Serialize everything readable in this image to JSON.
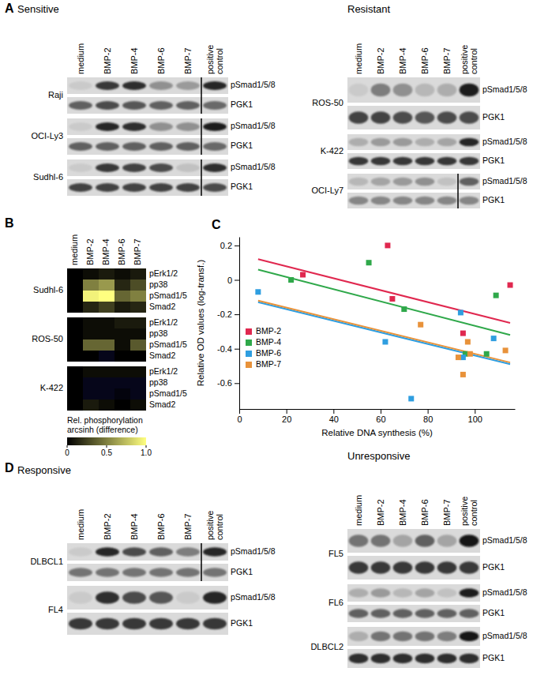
{
  "panels": [
    {
      "label": "A",
      "groups": [
        {
          "title": "Sensitive",
          "lanes": [
            "medium",
            "BMP-2",
            "BMP-4",
            "BMP-6",
            "BMP-7",
            "positive control"
          ],
          "blots": [
            {
              "cell": "Raji",
              "divider": true,
              "rows": [
                {
                  "label": "pSmad1/5/8",
                  "values": [
                    0.05,
                    0.8,
                    0.85,
                    0.35,
                    0.3,
                    0.9
                  ]
                },
                {
                  "label": "PGK1",
                  "values": [
                    0.6,
                    0.7,
                    0.65,
                    0.6,
                    0.6,
                    0.55
                  ]
                }
              ]
            },
            {
              "cell": "OCI-Ly3",
              "divider": true,
              "rows": [
                {
                  "label": "pSmad1/5/8",
                  "values": [
                    0.05,
                    0.9,
                    0.85,
                    0.35,
                    0.35,
                    0.95
                  ]
                },
                {
                  "label": "PGK1",
                  "values": [
                    0.6,
                    0.6,
                    0.6,
                    0.6,
                    0.6,
                    0.55
                  ]
                }
              ]
            },
            {
              "cell": "Sudhl-6",
              "divider": true,
              "rows": [
                {
                  "label": "pSmad1/5/8",
                  "values": [
                    0.05,
                    0.8,
                    0.75,
                    0.7,
                    0.1,
                    0.85
                  ]
                },
                {
                  "label": "PGK1",
                  "values": [
                    0.75,
                    0.75,
                    0.75,
                    0.75,
                    0.75,
                    0.7
                  ]
                }
              ]
            }
          ]
        },
        {
          "title": "Resistant",
          "lanes": [
            "medium",
            "BMP-2",
            "BMP-4",
            "BMP-6",
            "BMP-7",
            "positive control"
          ],
          "blots": [
            {
              "cell": "ROS-50",
              "divider": false,
              "rows": [
                {
                  "label": "pSmad1/5/8",
                  "values": [
                    0.05,
                    0.45,
                    0.35,
                    0.15,
                    0.2,
                    0.95
                  ]
                },
                {
                  "label": "PGK1",
                  "values": [
                    0.75,
                    0.75,
                    0.7,
                    0.65,
                    0.7,
                    0.7
                  ]
                }
              ]
            },
            {
              "cell": "K-422",
              "divider": false,
              "rows": [
                {
                  "label": "pSmad1/5/8",
                  "values": [
                    0.2,
                    0.3,
                    0.3,
                    0.2,
                    0.25,
                    0.9
                  ]
                },
                {
                  "label": "PGK1",
                  "values": [
                    0.8,
                    0.8,
                    0.8,
                    0.8,
                    0.8,
                    0.8
                  ]
                }
              ]
            },
            {
              "cell": "OCI-Ly7",
              "divider": true,
              "rows": [
                {
                  "label": "pSmad1/5/8",
                  "values": [
                    0.15,
                    0.25,
                    0.3,
                    0.35,
                    0.1,
                    0.6
                  ]
                },
                {
                  "label": "PGK1",
                  "values": [
                    0.4,
                    0.4,
                    0.4,
                    0.4,
                    0.4,
                    0.4
                  ]
                }
              ]
            }
          ]
        }
      ]
    },
    {
      "label": "B",
      "columns": [
        "medium",
        "BMP-2",
        "BMP-4",
        "BMP-6",
        "BMP-7"
      ],
      "rows": [
        "pErk1/2",
        "pp38",
        "pSmad1/5",
        "Smad2"
      ],
      "maps": [
        {
          "cell": "Sudhl-6",
          "values": [
            [
              0,
              0.05,
              0.1,
              0.05,
              0.1
            ],
            [
              0,
              0.5,
              0.6,
              0.15,
              0.3
            ],
            [
              0,
              0.95,
              1.0,
              0.4,
              0.5
            ],
            [
              0,
              0.15,
              0.25,
              0.1,
              0.15
            ]
          ]
        },
        {
          "cell": "ROS-50",
          "values": [
            [
              0,
              0.05,
              0.05,
              0.1,
              0.1
            ],
            [
              0,
              0.05,
              0.05,
              0.05,
              0.05
            ],
            [
              0,
              0.4,
              0.4,
              0.05,
              0.35
            ],
            [
              0,
              0,
              -0.1,
              0,
              0
            ]
          ]
        },
        {
          "cell": "K-422",
          "values": [
            [
              0,
              0.05,
              0.05,
              0.05,
              0.05
            ],
            [
              0,
              -0.1,
              -0.1,
              -0.1,
              -0.1
            ],
            [
              0,
              -0.1,
              -0.1,
              -0.05,
              -0.1
            ],
            [
              0,
              0.1,
              0.05,
              0,
              0.05
            ]
          ]
        }
      ],
      "colorbar": {
        "title": [
          "Rel. phosphorylation",
          "arcsinh (difference)"
        ],
        "range": [
          0,
          1
        ],
        "ticks": [
          0,
          0.5,
          {
            "value": 1,
            "label": "1.0"
          }
        ]
      }
    },
    {
      "label": "D",
      "groups": [
        {
          "title": "Responsive",
          "lanes": [
            "medium",
            "BMP-2",
            "BMP-4",
            "BMP-6",
            "BMP-7",
            "positive control"
          ],
          "blots": [
            {
              "cell": "DLBCL1",
              "divider": true,
              "rows": [
                {
                  "label": "pSmad1/5/8",
                  "values": [
                    0.05,
                    0.9,
                    0.7,
                    0.6,
                    0.45,
                    0.9
                  ]
                },
                {
                  "label": "PGK1",
                  "values": [
                    0.5,
                    0.5,
                    0.5,
                    0.5,
                    0.5,
                    0.5
                  ]
                }
              ]
            },
            {
              "cell": "FL4",
              "divider": false,
              "rows": [
                {
                  "label": "pSmad1/5/8",
                  "values": [
                    0.05,
                    0.85,
                    0.7,
                    0.65,
                    0.05,
                    0.9
                  ]
                },
                {
                  "label": "PGK1",
                  "values": [
                    0.8,
                    0.8,
                    0.8,
                    0.8,
                    0.8,
                    0.8
                  ]
                }
              ]
            }
          ]
        },
        {
          "title": "Unresponsive",
          "lanes": [
            "medium",
            "BMP-2",
            "BMP-4",
            "BMP-6",
            "BMP-7",
            "positive control"
          ],
          "blots": [
            {
              "cell": "FL5",
              "divider": false,
              "rows": [
                {
                  "label": "pSmad1/5/8",
                  "values": [
                    0.5,
                    0.5,
                    0.25,
                    0.6,
                    0.25,
                    1.0
                  ]
                },
                {
                  "label": "PGK1",
                  "values": [
                    0.8,
                    0.8,
                    0.8,
                    0.8,
                    0.8,
                    0.8
                  ]
                }
              ]
            },
            {
              "cell": "FL6",
              "divider": false,
              "rows": [
                {
                  "label": "pSmad1/5/8",
                  "values": [
                    0.2,
                    0.3,
                    0.15,
                    0.25,
                    0.1,
                    0.95
                  ]
                },
                {
                  "label": "PGK1",
                  "values": [
                    0.6,
                    0.6,
                    0.6,
                    0.6,
                    0.6,
                    0.6
                  ]
                }
              ]
            },
            {
              "cell": "DLBCL2",
              "divider": false,
              "rows": [
                {
                  "label": "pSmad1/5/8",
                  "values": [
                    0.2,
                    0.5,
                    0.5,
                    0.5,
                    0.45,
                    1.0
                  ]
                },
                {
                  "label": "PGK1",
                  "values": [
                    0.85,
                    0.85,
                    0.85,
                    0.85,
                    0.85,
                    0.85
                  ]
                }
              ]
            }
          ]
        }
      ]
    }
  ],
  "chart_data": {
    "panel_label": "C",
    "type": "scatter",
    "x_label": "Relative DNA synthesis (%)",
    "y_label": "Relative OD values (log-transf.)",
    "xlim": [
      0,
      117
    ],
    "ylim": [
      -0.75,
      0.25
    ],
    "xticks": [
      0,
      20,
      40,
      60,
      80,
      100
    ],
    "yticks": [
      -0.6,
      -0.4,
      -0.2,
      0,
      0.2
    ],
    "marker": "square",
    "legend": "lower left",
    "series": [
      {
        "name": "BMP-2",
        "color": "#e0284f",
        "x": [
          27,
          63,
          65,
          95,
          115
        ],
        "values": [
          0.03,
          0.2,
          -0.11,
          -0.31,
          -0.03
        ],
        "trend": {
          "x": [
            8,
            115
          ],
          "values": [
            0.12,
            -0.25
          ]
        }
      },
      {
        "name": "BMP-4",
        "color": "#2fa84a",
        "x": [
          22,
          55,
          70,
          96,
          105,
          109
        ],
        "values": [
          0,
          0.1,
          -0.17,
          -0.43,
          -0.43,
          -0.09
        ],
        "trend": {
          "x": [
            8,
            115
          ],
          "values": [
            0.06,
            -0.32
          ]
        }
      },
      {
        "name": "BMP-6",
        "color": "#2f9ee0",
        "x": [
          8,
          62,
          73,
          94,
          95,
          108
        ],
        "values": [
          -0.07,
          -0.36,
          -0.69,
          -0.19,
          -0.45,
          -0.34
        ],
        "trend": {
          "x": [
            8,
            115
          ],
          "values": [
            -0.13,
            -0.49
          ]
        }
      },
      {
        "name": "BMP-7",
        "color": "#e8923a",
        "x": [
          77,
          93,
          95,
          97,
          98,
          113
        ],
        "values": [
          -0.26,
          -0.45,
          -0.55,
          -0.36,
          -0.43,
          -0.41
        ],
        "trend": {
          "x": [
            8,
            115
          ],
          "values": [
            -0.12,
            -0.48
          ]
        }
      }
    ]
  }
}
